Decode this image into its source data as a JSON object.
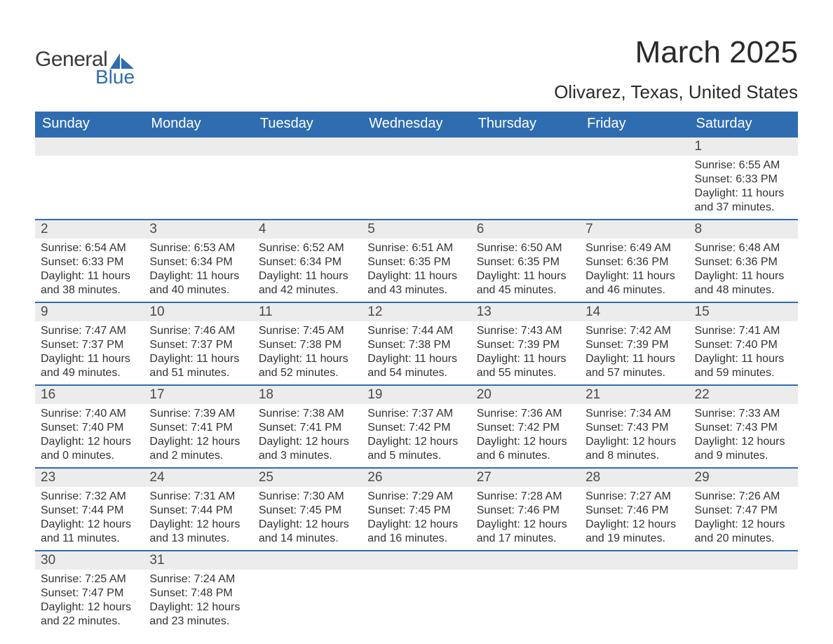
{
  "logo": {
    "line1": "General",
    "line2": "Blue",
    "shape_color": "#2f6db0"
  },
  "title": "March 2025",
  "location": "Olivarez, Texas, United States",
  "colors": {
    "header_bg": "#2f6db0",
    "header_text": "#ffffff",
    "daynum_bg": "#ececec",
    "border": "#2f6db0",
    "text": "#333333"
  },
  "typography": {
    "title_fontsize": 44,
    "location_fontsize": 26,
    "header_fontsize": 20,
    "daynum_fontsize": 19,
    "body_fontsize": 16
  },
  "day_headers": [
    "Sunday",
    "Monday",
    "Tuesday",
    "Wednesday",
    "Thursday",
    "Friday",
    "Saturday"
  ],
  "labels": {
    "sunrise": "Sunrise",
    "sunset": "Sunset",
    "daylight": "Daylight"
  },
  "weeks": [
    [
      null,
      null,
      null,
      null,
      null,
      null,
      {
        "d": 1,
        "sunrise": "6:55 AM",
        "sunset": "6:33 PM",
        "dl_h": 11,
        "dl_m": 37
      }
    ],
    [
      {
        "d": 2,
        "sunrise": "6:54 AM",
        "sunset": "6:33 PM",
        "dl_h": 11,
        "dl_m": 38
      },
      {
        "d": 3,
        "sunrise": "6:53 AM",
        "sunset": "6:34 PM",
        "dl_h": 11,
        "dl_m": 40
      },
      {
        "d": 4,
        "sunrise": "6:52 AM",
        "sunset": "6:34 PM",
        "dl_h": 11,
        "dl_m": 42
      },
      {
        "d": 5,
        "sunrise": "6:51 AM",
        "sunset": "6:35 PM",
        "dl_h": 11,
        "dl_m": 43
      },
      {
        "d": 6,
        "sunrise": "6:50 AM",
        "sunset": "6:35 PM",
        "dl_h": 11,
        "dl_m": 45
      },
      {
        "d": 7,
        "sunrise": "6:49 AM",
        "sunset": "6:36 PM",
        "dl_h": 11,
        "dl_m": 46
      },
      {
        "d": 8,
        "sunrise": "6:48 AM",
        "sunset": "6:36 PM",
        "dl_h": 11,
        "dl_m": 48
      }
    ],
    [
      {
        "d": 9,
        "sunrise": "7:47 AM",
        "sunset": "7:37 PM",
        "dl_h": 11,
        "dl_m": 49
      },
      {
        "d": 10,
        "sunrise": "7:46 AM",
        "sunset": "7:37 PM",
        "dl_h": 11,
        "dl_m": 51
      },
      {
        "d": 11,
        "sunrise": "7:45 AM",
        "sunset": "7:38 PM",
        "dl_h": 11,
        "dl_m": 52
      },
      {
        "d": 12,
        "sunrise": "7:44 AM",
        "sunset": "7:38 PM",
        "dl_h": 11,
        "dl_m": 54
      },
      {
        "d": 13,
        "sunrise": "7:43 AM",
        "sunset": "7:39 PM",
        "dl_h": 11,
        "dl_m": 55
      },
      {
        "d": 14,
        "sunrise": "7:42 AM",
        "sunset": "7:39 PM",
        "dl_h": 11,
        "dl_m": 57
      },
      {
        "d": 15,
        "sunrise": "7:41 AM",
        "sunset": "7:40 PM",
        "dl_h": 11,
        "dl_m": 59
      }
    ],
    [
      {
        "d": 16,
        "sunrise": "7:40 AM",
        "sunset": "7:40 PM",
        "dl_h": 12,
        "dl_m": 0
      },
      {
        "d": 17,
        "sunrise": "7:39 AM",
        "sunset": "7:41 PM",
        "dl_h": 12,
        "dl_m": 2
      },
      {
        "d": 18,
        "sunrise": "7:38 AM",
        "sunset": "7:41 PM",
        "dl_h": 12,
        "dl_m": 3
      },
      {
        "d": 19,
        "sunrise": "7:37 AM",
        "sunset": "7:42 PM",
        "dl_h": 12,
        "dl_m": 5
      },
      {
        "d": 20,
        "sunrise": "7:36 AM",
        "sunset": "7:42 PM",
        "dl_h": 12,
        "dl_m": 6
      },
      {
        "d": 21,
        "sunrise": "7:34 AM",
        "sunset": "7:43 PM",
        "dl_h": 12,
        "dl_m": 8
      },
      {
        "d": 22,
        "sunrise": "7:33 AM",
        "sunset": "7:43 PM",
        "dl_h": 12,
        "dl_m": 9
      }
    ],
    [
      {
        "d": 23,
        "sunrise": "7:32 AM",
        "sunset": "7:44 PM",
        "dl_h": 12,
        "dl_m": 11
      },
      {
        "d": 24,
        "sunrise": "7:31 AM",
        "sunset": "7:44 PM",
        "dl_h": 12,
        "dl_m": 13
      },
      {
        "d": 25,
        "sunrise": "7:30 AM",
        "sunset": "7:45 PM",
        "dl_h": 12,
        "dl_m": 14
      },
      {
        "d": 26,
        "sunrise": "7:29 AM",
        "sunset": "7:45 PM",
        "dl_h": 12,
        "dl_m": 16
      },
      {
        "d": 27,
        "sunrise": "7:28 AM",
        "sunset": "7:46 PM",
        "dl_h": 12,
        "dl_m": 17
      },
      {
        "d": 28,
        "sunrise": "7:27 AM",
        "sunset": "7:46 PM",
        "dl_h": 12,
        "dl_m": 19
      },
      {
        "d": 29,
        "sunrise": "7:26 AM",
        "sunset": "7:47 PM",
        "dl_h": 12,
        "dl_m": 20
      }
    ],
    [
      {
        "d": 30,
        "sunrise": "7:25 AM",
        "sunset": "7:47 PM",
        "dl_h": 12,
        "dl_m": 22
      },
      {
        "d": 31,
        "sunrise": "7:24 AM",
        "sunset": "7:48 PM",
        "dl_h": 12,
        "dl_m": 23
      },
      null,
      null,
      null,
      null,
      null
    ]
  ]
}
